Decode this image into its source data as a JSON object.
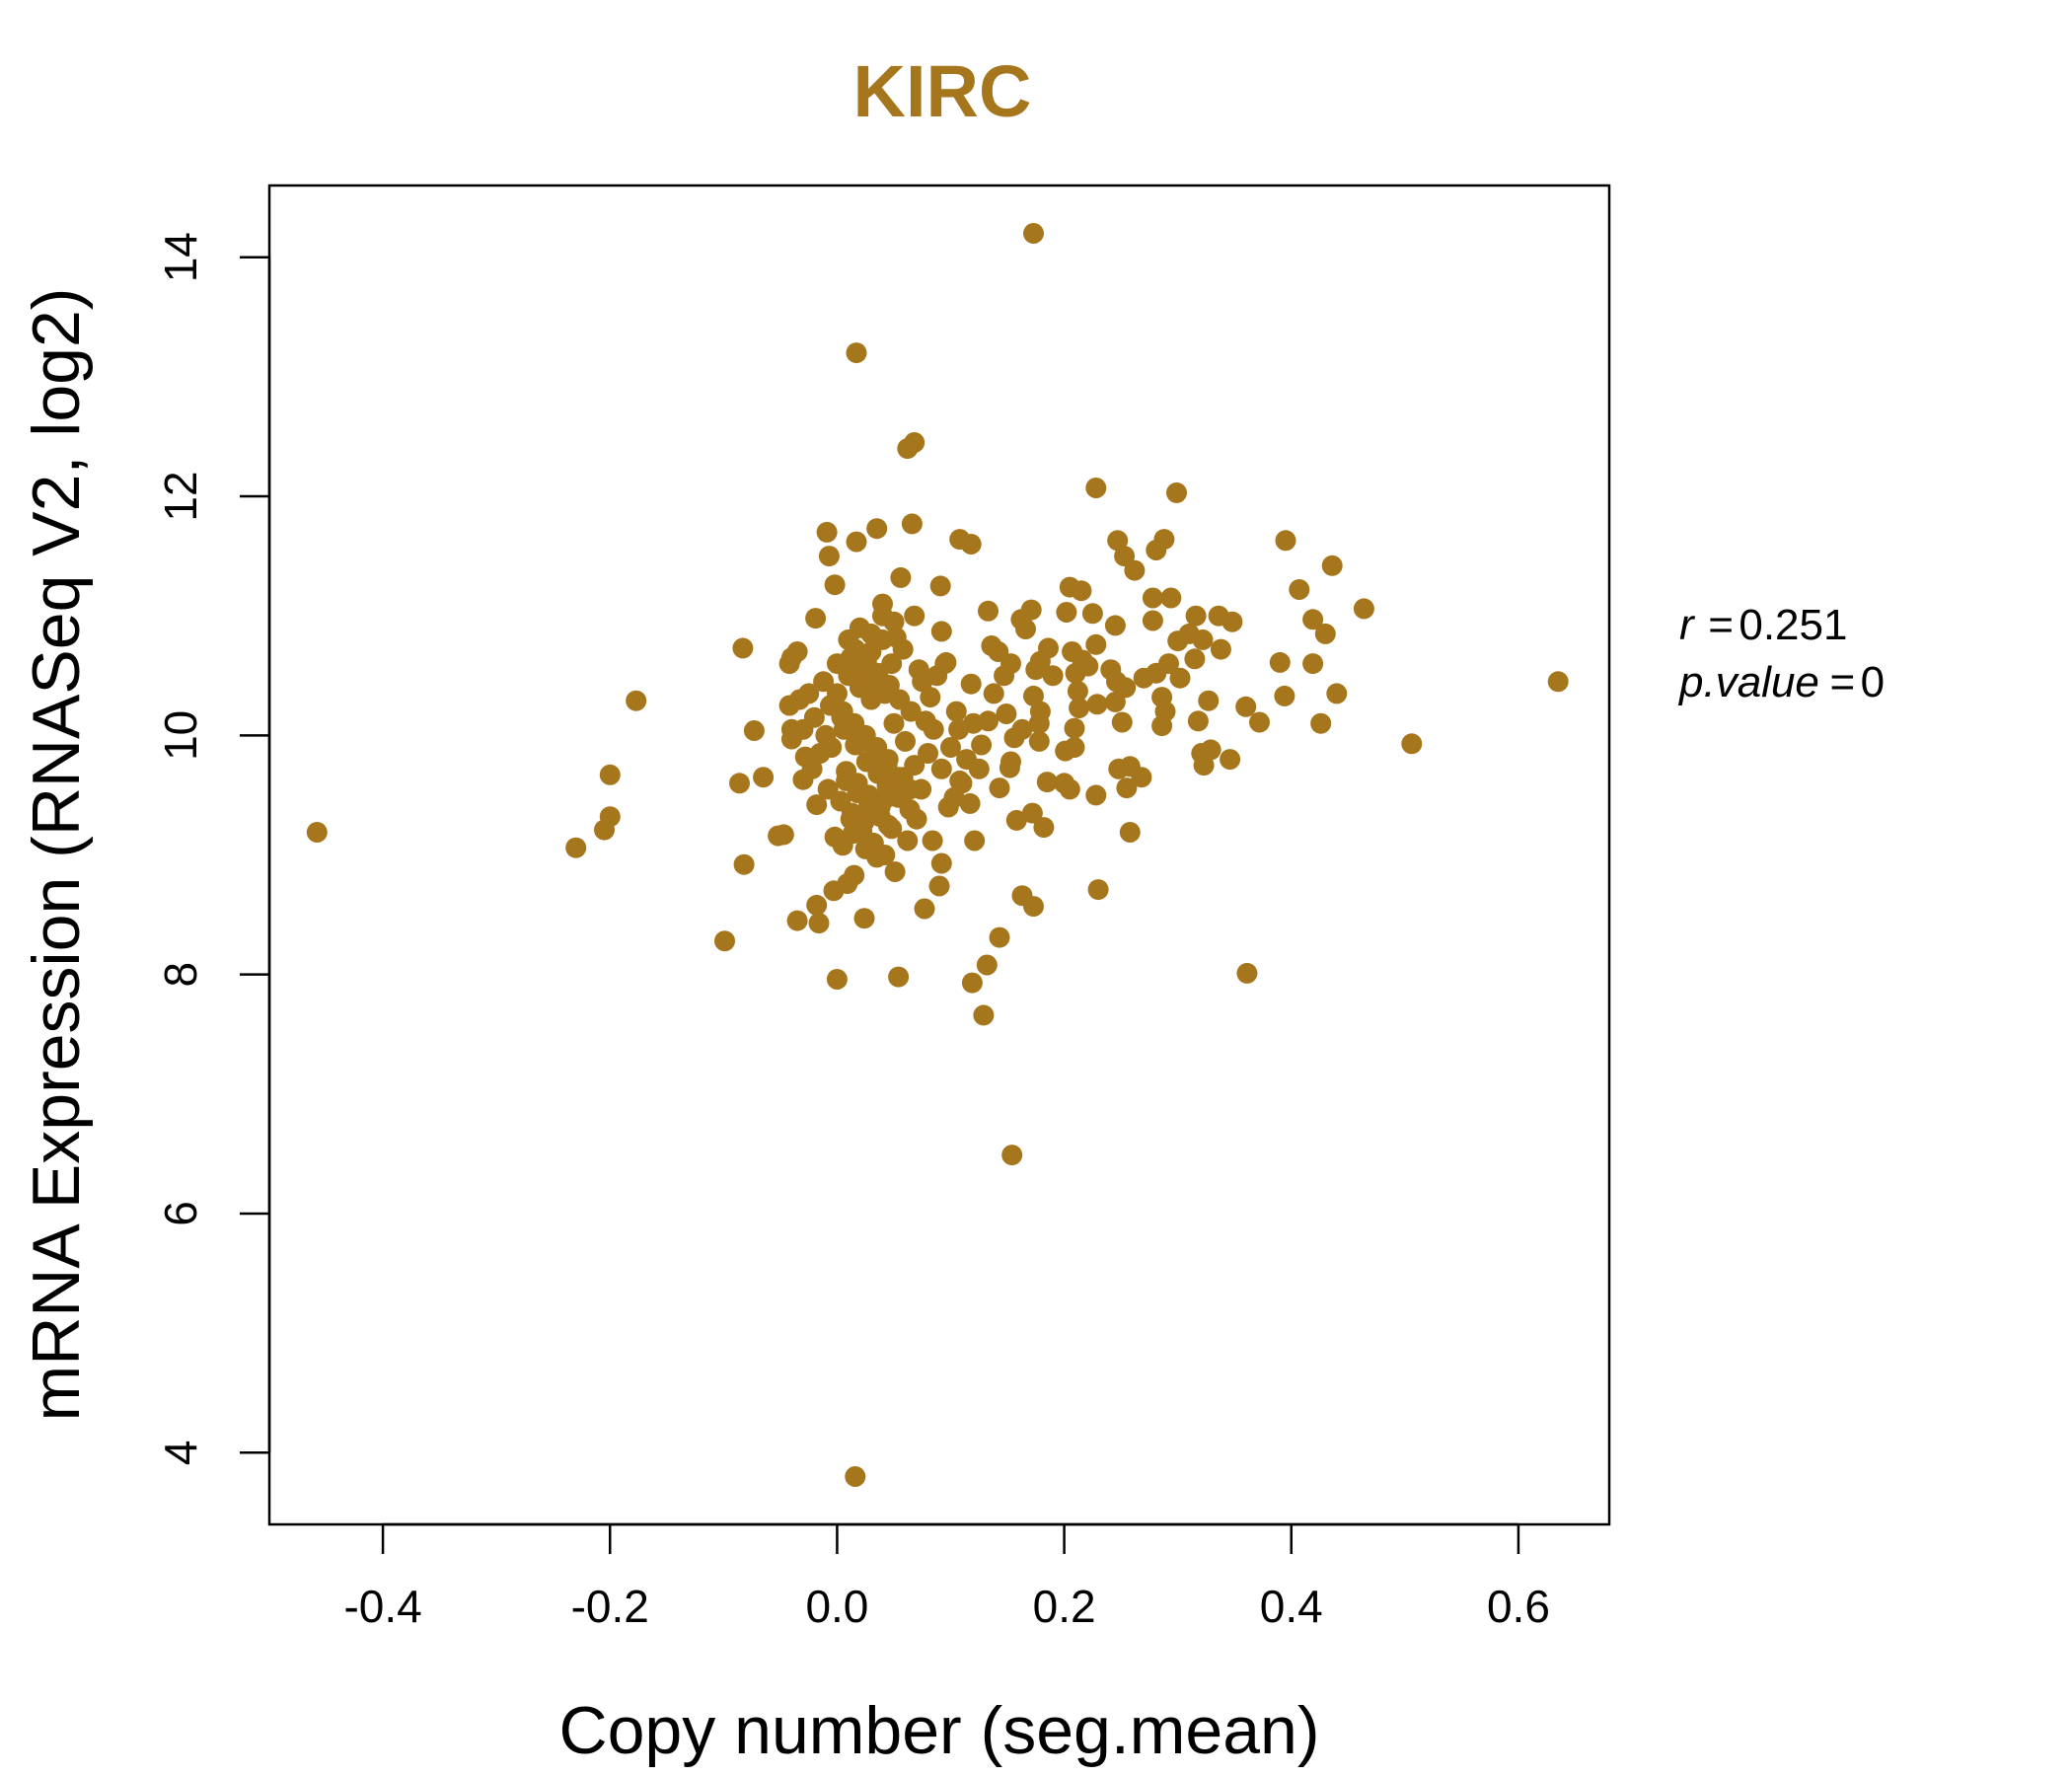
{
  "chart_data": {
    "type": "scatter",
    "title": "KIRC",
    "xlabel": "Copy number (seg.mean)",
    "ylabel": "mRNA Expression (RNASeq V2, log2)",
    "xlim": [
      -0.5,
      0.68
    ],
    "ylim": [
      3.4,
      14.6
    ],
    "xticks": [
      -0.4,
      -0.2,
      0.0,
      0.2,
      0.4,
      0.6
    ],
    "xtick_labels": [
      "-0.4",
      "-0.2",
      "0.0",
      "0.2",
      "0.4",
      "0.6"
    ],
    "yticks": [
      4,
      6,
      8,
      10,
      12,
      14
    ],
    "ytick_labels": [
      "4",
      "6",
      "8",
      "10",
      "12",
      "14"
    ],
    "grid": false,
    "point_color": "#A6761D",
    "stats": {
      "r_label": "r",
      "r_value": "0.251",
      "p_label": "p.value",
      "p_value": "0"
    },
    "points": [
      [
        0.173,
        14.2
      ],
      [
        0.017,
        13.2
      ],
      [
        0.068,
        12.45
      ],
      [
        0.062,
        12.4
      ],
      [
        0.228,
        12.07
      ],
      [
        0.299,
        12.03
      ],
      [
        -0.009,
        11.7
      ],
      [
        0.035,
        11.73
      ],
      [
        0.066,
        11.77
      ],
      [
        0.108,
        11.64
      ],
      [
        0.118,
        11.6
      ],
      [
        0.247,
        11.63
      ],
      [
        0.288,
        11.64
      ],
      [
        0.395,
        11.63
      ],
      [
        0.436,
        11.42
      ],
      [
        -0.007,
        11.5
      ],
      [
        0.017,
        11.62
      ],
      [
        0.253,
        11.5
      ],
      [
        0.262,
        11.38
      ],
      [
        0.281,
        11.55
      ],
      [
        0.056,
        11.32
      ],
      [
        0.091,
        11.25
      ],
      [
        -0.002,
        11.26
      ],
      [
        0.205,
        11.24
      ],
      [
        0.215,
        11.21
      ],
      [
        0.407,
        11.22
      ],
      [
        0.278,
        11.15
      ],
      [
        0.294,
        11.15
      ],
      [
        0.04,
        11.1
      ],
      [
        0.068,
        11.0
      ],
      [
        0.133,
        11.04
      ],
      [
        0.171,
        11.05
      ],
      [
        0.162,
        10.97
      ],
      [
        0.202,
        11.03
      ],
      [
        0.225,
        11.02
      ],
      [
        0.245,
        10.92
      ],
      [
        0.278,
        10.96
      ],
      [
        0.316,
        11.0
      ],
      [
        0.336,
        11.0
      ],
      [
        0.348,
        10.95
      ],
      [
        0.419,
        10.97
      ],
      [
        0.464,
        11.06
      ],
      [
        -0.019,
        10.98
      ],
      [
        0.092,
        10.87
      ],
      [
        0.166,
        10.89
      ],
      [
        0.31,
        10.85
      ],
      [
        0.43,
        10.85
      ],
      [
        0.136,
        10.75
      ],
      [
        0.186,
        10.73
      ],
      [
        0.207,
        10.7
      ],
      [
        0.228,
        10.76
      ],
      [
        0.3,
        10.79
      ],
      [
        0.322,
        10.8
      ],
      [
        0.338,
        10.72
      ],
      [
        -0.083,
        10.73
      ],
      [
        -0.035,
        10.7
      ],
      [
        -0.04,
        10.65
      ],
      [
        -0.042,
        10.6
      ],
      [
        0.096,
        10.61
      ],
      [
        0.142,
        10.7
      ],
      [
        0.153,
        10.6
      ],
      [
        0.175,
        10.55
      ],
      [
        0.179,
        10.62
      ],
      [
        0.216,
        10.63
      ],
      [
        0.221,
        10.58
      ],
      [
        0.241,
        10.55
      ],
      [
        0.292,
        10.6
      ],
      [
        0.315,
        10.64
      ],
      [
        0.39,
        10.61
      ],
      [
        0.419,
        10.6
      ],
      [
        0.147,
        10.5
      ],
      [
        0.19,
        10.5
      ],
      [
        0.21,
        10.52
      ],
      [
        0.246,
        10.45
      ],
      [
        0.27,
        10.48
      ],
      [
        0.281,
        10.52
      ],
      [
        0.302,
        10.48
      ],
      [
        0.118,
        10.43
      ],
      [
        0.138,
        10.35
      ],
      [
        0.173,
        10.33
      ],
      [
        0.212,
        10.37
      ],
      [
        0.254,
        10.4
      ],
      [
        0.286,
        10.32
      ],
      [
        0.327,
        10.29
      ],
      [
        0.394,
        10.33
      ],
      [
        0.44,
        10.35
      ],
      [
        0.635,
        10.45
      ],
      [
        -0.177,
        10.29
      ],
      [
        -0.033,
        10.3
      ],
      [
        -0.042,
        10.25
      ],
      [
        0.179,
        10.2
      ],
      [
        0.213,
        10.23
      ],
      [
        0.229,
        10.26
      ],
      [
        0.245,
        10.28
      ],
      [
        0.289,
        10.2
      ],
      [
        0.36,
        10.24
      ],
      [
        -0.073,
        10.04
      ],
      [
        -0.04,
        10.05
      ],
      [
        0.107,
        10.05
      ],
      [
        0.12,
        10.1
      ],
      [
        0.133,
        10.12
      ],
      [
        0.149,
        10.18
      ],
      [
        0.163,
        10.05
      ],
      [
        0.178,
        10.1
      ],
      [
        0.209,
        10.06
      ],
      [
        0.251,
        10.11
      ],
      [
        0.286,
        10.08
      ],
      [
        0.318,
        10.12
      ],
      [
        0.372,
        10.11
      ],
      [
        0.426,
        10.1
      ],
      [
        -0.04,
        9.97
      ],
      [
        0.127,
        9.92
      ],
      [
        0.156,
        9.98
      ],
      [
        0.178,
        9.95
      ],
      [
        0.201,
        9.87
      ],
      [
        0.209,
        9.9
      ],
      [
        0.321,
        9.85
      ],
      [
        0.329,
        9.88
      ],
      [
        0.506,
        9.93
      ],
      [
        0.114,
        9.8
      ],
      [
        0.153,
        9.78
      ],
      [
        0.248,
        9.72
      ],
      [
        0.258,
        9.74
      ],
      [
        0.323,
        9.75
      ],
      [
        0.346,
        9.8
      ],
      [
        -0.2,
        9.67
      ],
      [
        -0.065,
        9.65
      ],
      [
        0.125,
        9.72
      ],
      [
        0.152,
        9.73
      ],
      [
        -0.086,
        9.6
      ],
      [
        -0.03,
        9.63
      ],
      [
        0.108,
        9.62
      ],
      [
        0.143,
        9.56
      ],
      [
        0.185,
        9.61
      ],
      [
        0.2,
        9.6
      ],
      [
        0.205,
        9.55
      ],
      [
        0.228,
        9.5
      ],
      [
        0.255,
        9.56
      ],
      [
        0.268,
        9.65
      ],
      [
        0.103,
        9.48
      ],
      [
        0.117,
        9.43
      ],
      [
        -0.2,
        9.32
      ],
      [
        -0.23,
        9.06
      ],
      [
        -0.205,
        9.21
      ],
      [
        -0.458,
        9.19
      ],
      [
        -0.047,
        9.17
      ],
      [
        -0.052,
        9.16
      ],
      [
        0.084,
        9.12
      ],
      [
        0.121,
        9.12
      ],
      [
        0.158,
        9.29
      ],
      [
        0.172,
        9.35
      ],
      [
        0.182,
        9.23
      ],
      [
        0.258,
        9.19
      ],
      [
        -0.082,
        8.92
      ],
      [
        0.051,
        8.86
      ],
      [
        0.092,
        8.93
      ],
      [
        0.015,
        8.83
      ],
      [
        0.009,
        8.76
      ],
      [
        -0.003,
        8.7
      ],
      [
        0.09,
        8.74
      ],
      [
        0.163,
        8.66
      ],
      [
        0.23,
        8.71
      ],
      [
        -0.018,
        8.58
      ],
      [
        -0.035,
        8.45
      ],
      [
        -0.016,
        8.43
      ],
      [
        0.024,
        8.47
      ],
      [
        0.077,
        8.55
      ],
      [
        0.173,
        8.57
      ],
      [
        -0.099,
        8.28
      ],
      [
        0.143,
        8.31
      ],
      [
        0.132,
        8.08
      ],
      [
        0.361,
        8.01
      ],
      [
        -0.0,
        7.96
      ],
      [
        0.054,
        7.98
      ],
      [
        0.119,
        7.93
      ],
      [
        0.129,
        7.66
      ],
      [
        0.154,
        6.49
      ],
      [
        0.016,
        3.8
      ],
      [
        0.0,
        10.6
      ],
      [
        0.01,
        10.5
      ],
      [
        0.02,
        10.4
      ],
      [
        0.03,
        10.3
      ],
      [
        0.005,
        10.2
      ],
      [
        0.015,
        10.1
      ],
      [
        0.025,
        10.0
      ],
      [
        0.035,
        9.9
      ],
      [
        0.045,
        9.8
      ],
      [
        0.008,
        9.7
      ],
      [
        0.018,
        9.6
      ],
      [
        0.028,
        9.5
      ],
      [
        0.038,
        9.4
      ],
      [
        0.012,
        9.3
      ],
      [
        0.022,
        9.2
      ],
      [
        0.032,
        9.1
      ],
      [
        0.042,
        9.0
      ],
      [
        -0.01,
        10.0
      ],
      [
        -0.005,
        9.9
      ],
      [
        0.05,
        10.1
      ],
      [
        0.055,
        10.3
      ],
      [
        0.06,
        9.95
      ],
      [
        0.065,
        10.2
      ],
      [
        0.048,
        10.6
      ],
      [
        0.04,
        10.8
      ],
      [
        0.03,
        10.7
      ],
      [
        0.02,
        10.9
      ],
      [
        0.01,
        10.8
      ],
      [
        0.0,
        10.35
      ],
      [
        -0.012,
        10.45
      ],
      [
        -0.02,
        10.15
      ],
      [
        -0.015,
        9.85
      ],
      [
        -0.008,
        9.55
      ],
      [
        0.003,
        9.45
      ],
      [
        0.013,
        9.35
      ],
      [
        0.058,
        9.65
      ],
      [
        0.068,
        9.75
      ],
      [
        0.072,
        10.55
      ],
      [
        0.075,
        10.45
      ],
      [
        0.08,
        9.85
      ],
      [
        0.085,
        10.05
      ],
      [
        0.07,
        9.3
      ],
      [
        0.062,
        9.12
      ],
      [
        0.045,
        9.25
      ],
      [
        0.035,
        8.98
      ],
      [
        0.025,
        9.05
      ],
      [
        0.005,
        9.08
      ],
      [
        -0.002,
        9.15
      ],
      [
        0.016,
        10.72
      ],
      [
        0.026,
        10.62
      ],
      [
        0.036,
        10.52
      ],
      [
        0.046,
        10.42
      ],
      [
        0.052,
        10.82
      ],
      [
        0.058,
        10.72
      ],
      [
        0.006,
        10.05
      ],
      [
        0.016,
        9.92
      ],
      [
        0.026,
        9.78
      ],
      [
        0.036,
        9.68
      ],
      [
        0.044,
        9.58
      ],
      [
        0.054,
        9.48
      ],
      [
        0.064,
        9.38
      ],
      [
        0.074,
        9.55
      ],
      [
        0.078,
        10.12
      ],
      [
        0.082,
        10.32
      ],
      [
        0.088,
        10.5
      ],
      [
        0.092,
        9.72
      ],
      [
        -0.025,
        10.35
      ],
      [
        -0.03,
        10.05
      ],
      [
        -0.022,
        9.72
      ],
      [
        -0.018,
        9.42
      ],
      [
        -0.028,
        9.82
      ],
      [
        0.1,
        9.9
      ],
      [
        0.105,
        10.2
      ],
      [
        0.098,
        9.4
      ],
      [
        0.11,
        9.6
      ],
      [
        0.095,
        10.6
      ],
      [
        0.04,
        11.0
      ],
      [
        0.05,
        10.95
      ],
      [
        0.03,
        10.85
      ],
      [
        0.012,
        10.65
      ],
      [
        0.022,
        10.55
      ],
      [
        0.032,
        10.45
      ],
      [
        0.042,
        10.35
      ],
      [
        0.008,
        9.62
      ],
      [
        0.018,
        9.52
      ],
      [
        0.028,
        9.42
      ],
      [
        0.038,
        9.32
      ],
      [
        0.048,
        9.22
      ],
      [
        0.014,
        9.18
      ],
      [
        0.024,
        9.28
      ],
      [
        0.034,
        9.38
      ],
      [
        0.044,
        9.48
      ],
      [
        -0.006,
        10.25
      ],
      [
        0.004,
        10.15
      ],
      [
        0.014,
        10.05
      ],
      [
        0.024,
        9.95
      ],
      [
        0.034,
        9.85
      ],
      [
        0.044,
        9.75
      ],
      [
        0.054,
        9.65
      ],
      [
        0.064,
        9.55
      ]
    ]
  }
}
